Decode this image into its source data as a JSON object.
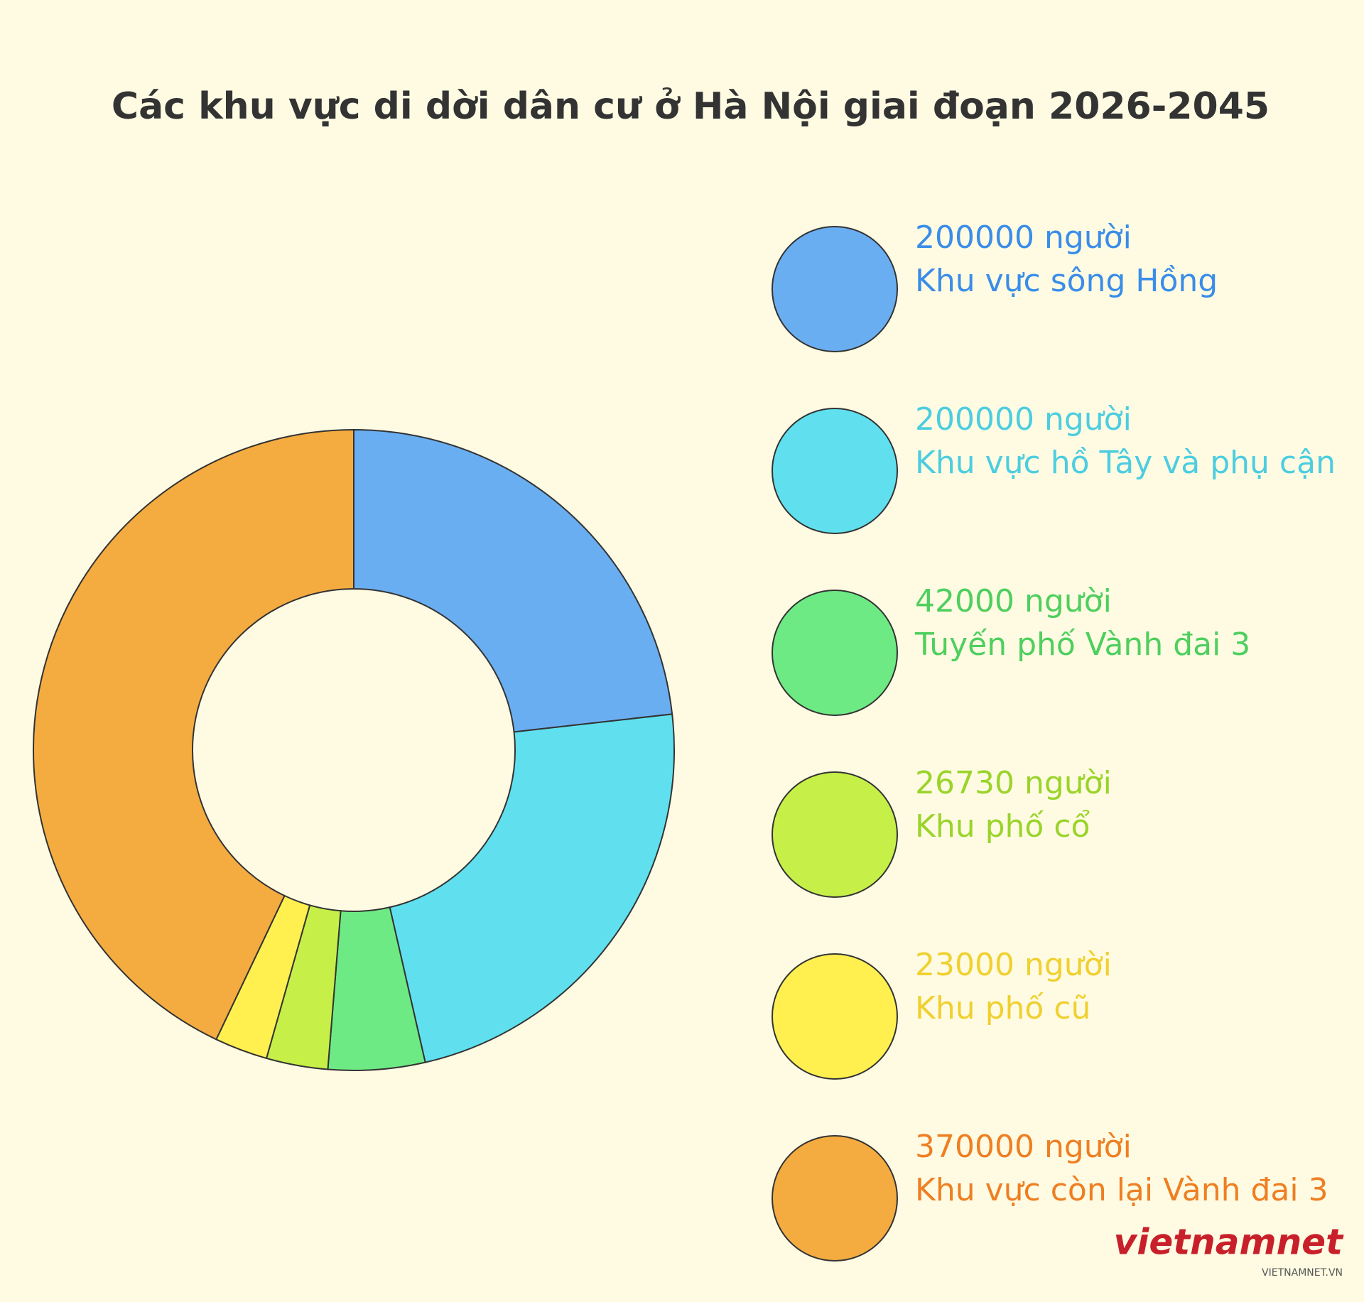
{
  "chart_data": {
    "type": "donut",
    "title": "Các khu vực di dời dân cư ở Hà Nội giai đoạn 2026-2045",
    "categories": [
      "Khu vực sông Hồng",
      "Khu vực hồ Tây và phụ cận",
      "Tuyến phố Vành đai 3",
      "Khu phố cổ",
      "Khu phố cũ",
      "Khu vực còn lại Vành đai 3"
    ],
    "values": [
      200000,
      200000,
      42000,
      26730,
      23000,
      370000
    ],
    "value_labels": [
      "200000 người",
      "200000 người",
      "42000 người",
      "26730 người",
      "23000 người",
      "370000 người"
    ],
    "colors": [
      "#6aaef2",
      "#60e0ee",
      "#6eea84",
      "#c6f048",
      "#fff050",
      "#f4ac40"
    ],
    "label_colors": [
      "#3a8de8",
      "#4ccde0",
      "#4ecf5e",
      "#9ad42a",
      "#f0d030",
      "#ee7f22"
    ],
    "watermark": [
      "vietnamnet",
      "VIETNAMNET.VN"
    ]
  }
}
